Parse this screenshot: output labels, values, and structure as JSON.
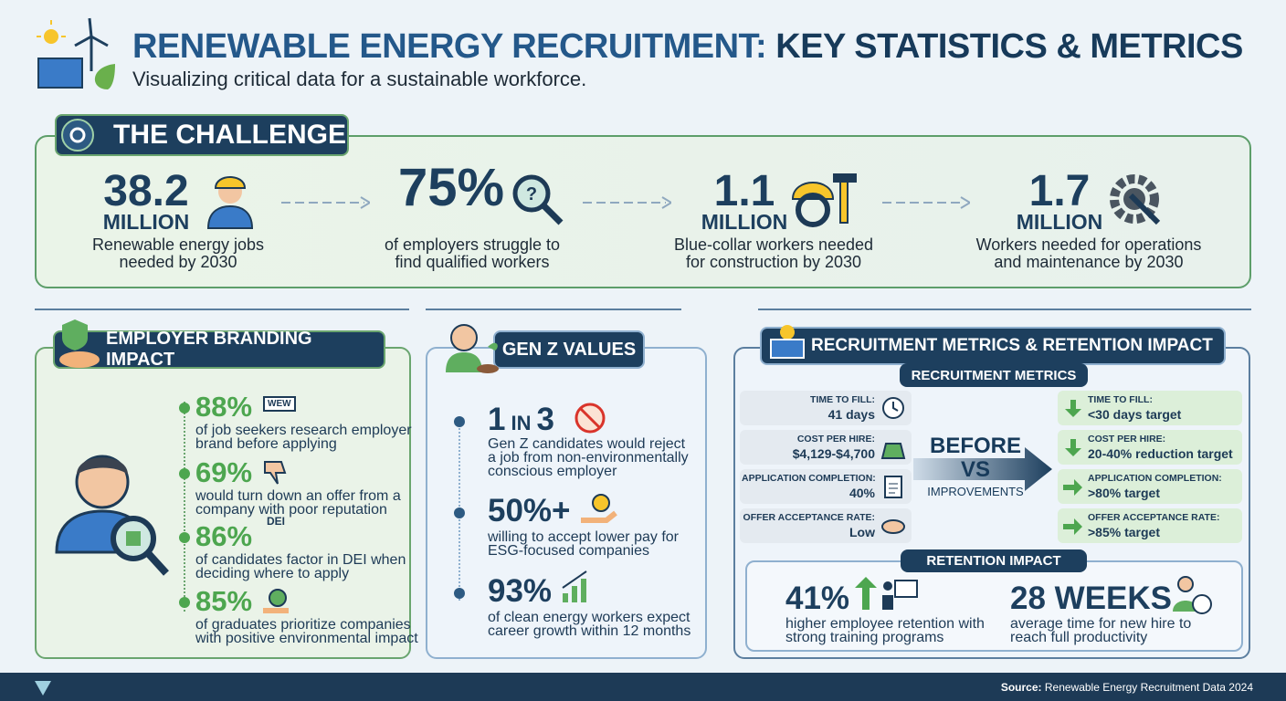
{
  "header": {
    "title_part1": "RENEWABLE ENERGY RECRUITMENT:",
    "title_part2": "KEY STATISTICS & METRICS",
    "subtitle": "Visualizing critical data for a sustainable workforce."
  },
  "challenge": {
    "title": "THE CHALLENGE",
    "stats": [
      {
        "value": "38.2",
        "unit": "MILLION",
        "label": [
          "Renewable energy jobs",
          "needed by 2030"
        ]
      },
      {
        "value": "75%",
        "label": [
          "of employers struggle to",
          "find qualified workers"
        ]
      },
      {
        "value": "1.1",
        "unit": "MILLION",
        "label": [
          "Blue-collar workers needed",
          "for construction by 2030"
        ]
      },
      {
        "value": "1.7",
        "unit": "MILLION",
        "label": [
          "Workers needed for operations",
          "and maintenance by 2030"
        ]
      }
    ]
  },
  "employer_branding": {
    "title": "EMPLOYER BRANDING IMPACT",
    "stats": [
      {
        "value": "88%",
        "icon_text": "WEW",
        "label": [
          "of job seekers research employer",
          "brand before applying"
        ]
      },
      {
        "value": "69%",
        "label": [
          "would turn down an offer from a",
          "company with poor reputation"
        ]
      },
      {
        "value": "86%",
        "icon_text": "DEI",
        "label": [
          "of candidates factor in DEI when",
          "deciding where to apply"
        ]
      },
      {
        "value": "85%",
        "label": [
          "of graduates prioritize companies",
          "with positive environmental impact"
        ]
      }
    ]
  },
  "gen_z": {
    "title": "GEN Z VALUES",
    "stats": [
      {
        "value_parts": [
          "1",
          "IN",
          "3"
        ],
        "label": [
          "Gen Z candidates would reject",
          "a job from non-environmentally",
          "conscious employer"
        ]
      },
      {
        "value": "50%+",
        "label": [
          "willing to accept lower pay for",
          "ESG-focused companies"
        ]
      },
      {
        "value": "93%",
        "label": [
          "of clean energy workers expect",
          "career growth within 12 months"
        ]
      }
    ]
  },
  "recruitment": {
    "title": "RECRUITMENT METRICS & RETENTION IMPACT",
    "metrics_title": "RECRUITMENT METRICS",
    "before": [
      {
        "label": "TIME TO FILL:",
        "value": "41 days"
      },
      {
        "label": "COST PER HIRE:",
        "value": "$4,129-$4,700"
      },
      {
        "label": "APPLICATION COMPLETION:",
        "value": "40%"
      },
      {
        "label": "OFFER ACCEPTANCE RATE:",
        "value": "Low"
      }
    ],
    "comparison": {
      "before": "BEFORE",
      "vs": "VS",
      "improvements": "IMPROVEMENTS"
    },
    "after": [
      {
        "label": "TIME TO FILL:",
        "value": "<30 days target"
      },
      {
        "label": "COST PER HIRE:",
        "value": "20-40% reduction target"
      },
      {
        "label": "APPLICATION COMPLETION:",
        "value": ">80% target"
      },
      {
        "label": "OFFER ACCEPTANCE RATE:",
        "value": ">85% target"
      }
    ],
    "retention_title": "RETENTION IMPACT",
    "retention": [
      {
        "value": "41%",
        "label": [
          "higher employee retention with",
          "strong training programs"
        ]
      },
      {
        "value": "28 WEEKS",
        "label": [
          "average time for new hire to",
          "reach full productivity"
        ]
      }
    ]
  },
  "footer": {
    "source_label": "Source:",
    "source": "Renewable Energy Recruitment Data 2024"
  }
}
